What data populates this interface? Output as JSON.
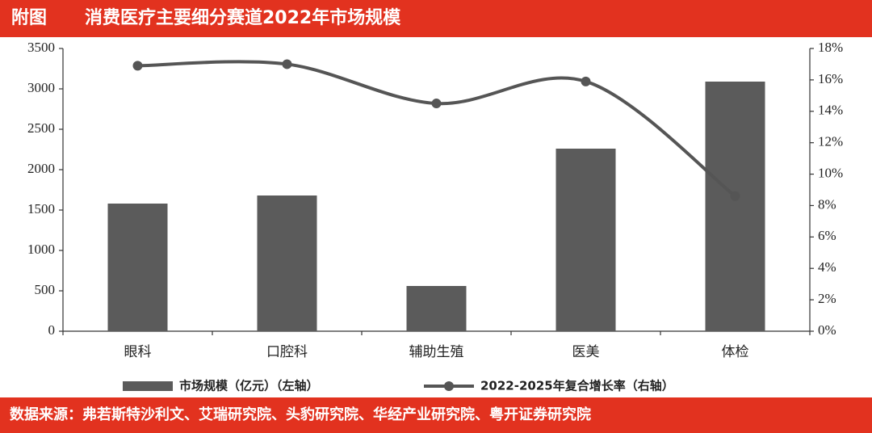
{
  "chart_data": {
    "type": "bar",
    "figure_label": "附图",
    "title": "消费医疗主要细分赛道2022年市场规模",
    "source": "数据来源：弗若斯特沙利文、艾瑞研究院、头豹研究院、华经产业研究院、粤开证券研究院",
    "categories": [
      "眼科",
      "口腔科",
      "辅助生殖",
      "医美",
      "体检"
    ],
    "series": [
      {
        "name": "市场规模（亿元）（左轴）",
        "type": "bar",
        "color": "#5b5b5b",
        "values": [
          1580,
          1680,
          560,
          2260,
          3090
        ]
      },
      {
        "name": "2022-2025年复合增长率（右轴）",
        "type": "line",
        "axis": "y2",
        "color": "#555555",
        "values": [
          16.9,
          17.0,
          14.5,
          15.9,
          8.6
        ]
      }
    ],
    "ylim": [
      0,
      3500
    ],
    "yticks": [
      0,
      500,
      1000,
      1500,
      2000,
      2500,
      3000,
      3500
    ],
    "y2lim": [
      0,
      18
    ],
    "y2ticks": [
      {
        "value": 0,
        "label": "0%"
      },
      {
        "value": 2,
        "label": "2%"
      },
      {
        "value": 4,
        "label": "4%"
      },
      {
        "value": 6,
        "label": "6%"
      },
      {
        "value": 8,
        "label": "8%"
      },
      {
        "value": 10,
        "label": "10%"
      },
      {
        "value": 12,
        "label": "12%"
      },
      {
        "value": 14,
        "label": "14%"
      },
      {
        "value": 16,
        "label": "16%"
      },
      {
        "value": 18,
        "label": "18%"
      }
    ],
    "grid": false,
    "legend": "bottom"
  }
}
